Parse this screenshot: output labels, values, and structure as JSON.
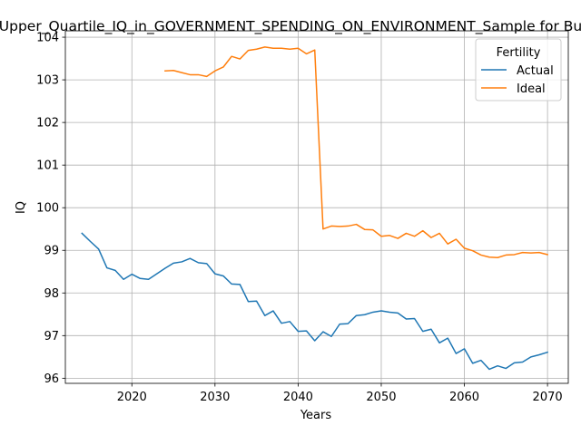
{
  "chart_data": {
    "type": "line",
    "title": "Upper_Quartile_IQ_in_GOVERNMENT_SPENDING_ON_ENVIRONMENT_Sample for Bu",
    "xlabel": "Years",
    "ylabel": "IQ",
    "xlim": [
      2012,
      2072.5
    ],
    "ylim": [
      95.88,
      104.15
    ],
    "xticks": [
      2020,
      2030,
      2040,
      2050,
      2060,
      2070
    ],
    "yticks": [
      96,
      97,
      98,
      99,
      100,
      101,
      102,
      103,
      104
    ],
    "grid": true,
    "legend": {
      "title": "Fertility",
      "placement": "top-right"
    },
    "series": [
      {
        "name": "Actual",
        "color": "#1f77b4",
        "x": [
          2014,
          2015,
          2016,
          2017,
          2018,
          2019,
          2020,
          2021,
          2022,
          2023,
          2024,
          2025,
          2026,
          2027,
          2028,
          2029,
          2030,
          2031,
          2032,
          2033,
          2034,
          2035,
          2036,
          2037,
          2038,
          2039,
          2040,
          2041,
          2042,
          2043,
          2044,
          2045,
          2046,
          2047,
          2048,
          2049,
          2050,
          2051,
          2052,
          2053,
          2054,
          2055,
          2056,
          2057,
          2058,
          2059,
          2060,
          2061,
          2062,
          2063,
          2064,
          2065,
          2066,
          2067,
          2068,
          2069,
          2070
        ],
        "values": [
          99.4,
          99.21,
          99.03,
          98.59,
          98.53,
          98.32,
          98.44,
          98.34,
          98.32,
          98.45,
          98.58,
          98.7,
          98.73,
          98.81,
          98.71,
          98.69,
          98.45,
          98.4,
          98.21,
          98.2,
          97.8,
          97.81,
          97.47,
          97.58,
          97.29,
          97.33,
          97.1,
          97.11,
          96.88,
          97.09,
          96.98,
          97.27,
          97.28,
          97.47,
          97.49,
          97.55,
          97.58,
          97.55,
          97.53,
          97.39,
          97.4,
          97.1,
          97.15,
          96.83,
          96.94,
          96.58,
          96.69,
          96.35,
          96.42,
          96.21,
          96.29,
          96.23,
          96.36,
          96.38,
          96.5,
          96.55,
          96.61
        ]
      },
      {
        "name": "Ideal",
        "color": "#ff7f0e",
        "x": [
          2024,
          2025,
          2026,
          2027,
          2028,
          2029,
          2030,
          2031,
          2032,
          2033,
          2034,
          2035,
          2036,
          2037,
          2038,
          2039,
          2040,
          2041,
          2042,
          2043,
          2044,
          2045,
          2046,
          2047,
          2048,
          2049,
          2050,
          2051,
          2052,
          2053,
          2054,
          2055,
          2056,
          2057,
          2058,
          2059,
          2060,
          2061,
          2062,
          2063,
          2064,
          2065,
          2066,
          2067,
          2068,
          2069,
          2070
        ],
        "values": [
          103.21,
          103.22,
          103.17,
          103.12,
          103.12,
          103.08,
          103.21,
          103.3,
          103.55,
          103.49,
          103.69,
          103.72,
          103.77,
          103.74,
          103.74,
          103.72,
          103.74,
          103.61,
          103.7,
          99.5,
          99.57,
          99.56,
          99.57,
          99.61,
          99.49,
          99.48,
          99.33,
          99.35,
          99.28,
          99.4,
          99.33,
          99.46,
          99.3,
          99.4,
          99.15,
          99.26,
          99.05,
          98.99,
          98.89,
          98.84,
          98.83,
          98.89,
          98.9,
          98.95,
          98.94,
          98.95,
          98.9
        ]
      }
    ]
  }
}
